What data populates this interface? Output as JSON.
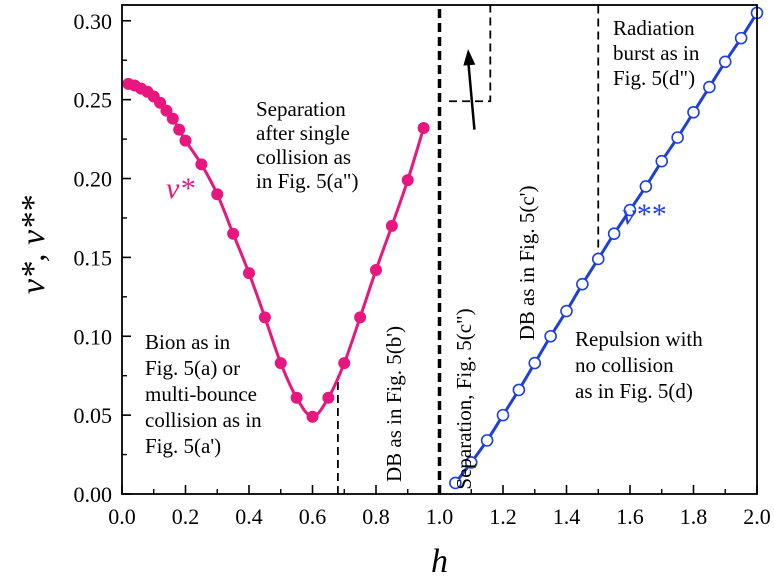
{
  "chart_data": {
    "type": "scatter",
    "xlabel": "h",
    "ylabel": "v*,  v**",
    "xlim": [
      0.0,
      2.0
    ],
    "ylim": [
      0.0,
      0.31
    ],
    "x_ticks": [
      "0.0",
      "0.2",
      "0.4",
      "0.6",
      "0.8",
      "1.0",
      "1.2",
      "1.4",
      "1.6",
      "1.8",
      "2.0"
    ],
    "y_ticks": [
      "0.00",
      "0.05",
      "0.10",
      "0.15",
      "0.20",
      "0.25",
      "0.30"
    ],
    "grid": false,
    "series": [
      {
        "name": "v*",
        "color": "#e8177f",
        "marker": "filled-circle",
        "x": [
          0.02,
          0.04,
          0.06,
          0.08,
          0.1,
          0.12,
          0.14,
          0.16,
          0.18,
          0.2,
          0.25,
          0.3,
          0.35,
          0.4,
          0.45,
          0.5,
          0.55,
          0.6,
          0.65,
          0.7,
          0.75,
          0.8,
          0.85,
          0.9,
          0.95
        ],
        "y": [
          0.26,
          0.259,
          0.257,
          0.255,
          0.252,
          0.248,
          0.243,
          0.238,
          0.231,
          0.224,
          0.209,
          0.19,
          0.165,
          0.14,
          0.112,
          0.083,
          0.061,
          0.049,
          0.061,
          0.083,
          0.112,
          0.142,
          0.17,
          0.199,
          0.232
        ]
      },
      {
        "name": "v**",
        "color": "#1f3fd8",
        "marker": "open-circle",
        "x": [
          1.05,
          1.1,
          1.15,
          1.2,
          1.25,
          1.3,
          1.35,
          1.4,
          1.45,
          1.5,
          1.55,
          1.6,
          1.65,
          1.7,
          1.75,
          1.8,
          1.85,
          1.9,
          1.95,
          2.0
        ],
        "y": [
          0.007,
          0.02,
          0.034,
          0.05,
          0.066,
          0.083,
          0.1,
          0.116,
          0.133,
          0.149,
          0.165,
          0.18,
          0.195,
          0.211,
          0.226,
          0.242,
          0.258,
          0.274,
          0.289,
          0.305
        ]
      }
    ],
    "vertical_markers": [
      {
        "x": 0.68,
        "y_from": 0.0,
        "y_to": 0.075,
        "style": "dashed"
      },
      {
        "x": 1.0,
        "y_from": 0.0,
        "y_to": 0.31,
        "style": "dashed-bold"
      },
      {
        "x": 1.5,
        "y_from": 0.148,
        "y_to": 0.31,
        "style": "dashed"
      }
    ],
    "step_marker": {
      "points": [
        [
          1.03,
          0.249
        ],
        [
          1.16,
          0.249
        ],
        [
          1.16,
          0.31
        ]
      ],
      "style": "dashed"
    },
    "arrow": {
      "from": [
        1.11,
        0.231
      ],
      "to": [
        1.09,
        0.282
      ]
    },
    "series_labels": [
      {
        "text": "v*",
        "series": 0
      },
      {
        "text": "v**",
        "series": 1
      }
    ],
    "annotations": [
      {
        "id": "separation",
        "lines": [
          "Separation",
          "after single",
          "collision as",
          "in Fig. 5(a\")"
        ]
      },
      {
        "id": "bion",
        "lines": [
          "Bion as in",
          "Fig. 5(a) or",
          "multi-bounce",
          "collision as in",
          "Fig. 5(a')"
        ]
      },
      {
        "id": "db-b",
        "lines": [
          "DB as in Fig. 5(b')"
        ]
      },
      {
        "id": "separation-c",
        "lines": [
          "Separation, Fig. 5(c\")"
        ]
      },
      {
        "id": "db-c",
        "lines": [
          "DB as in Fig. 5(c')"
        ]
      },
      {
        "id": "radiation",
        "lines": [
          "Radiation",
          "burst as in",
          "Fig. 5(d\")"
        ]
      },
      {
        "id": "repulsion",
        "lines": [
          "Repulsion with",
          "no collision",
          "as in Fig. 5(d)"
        ]
      }
    ]
  }
}
